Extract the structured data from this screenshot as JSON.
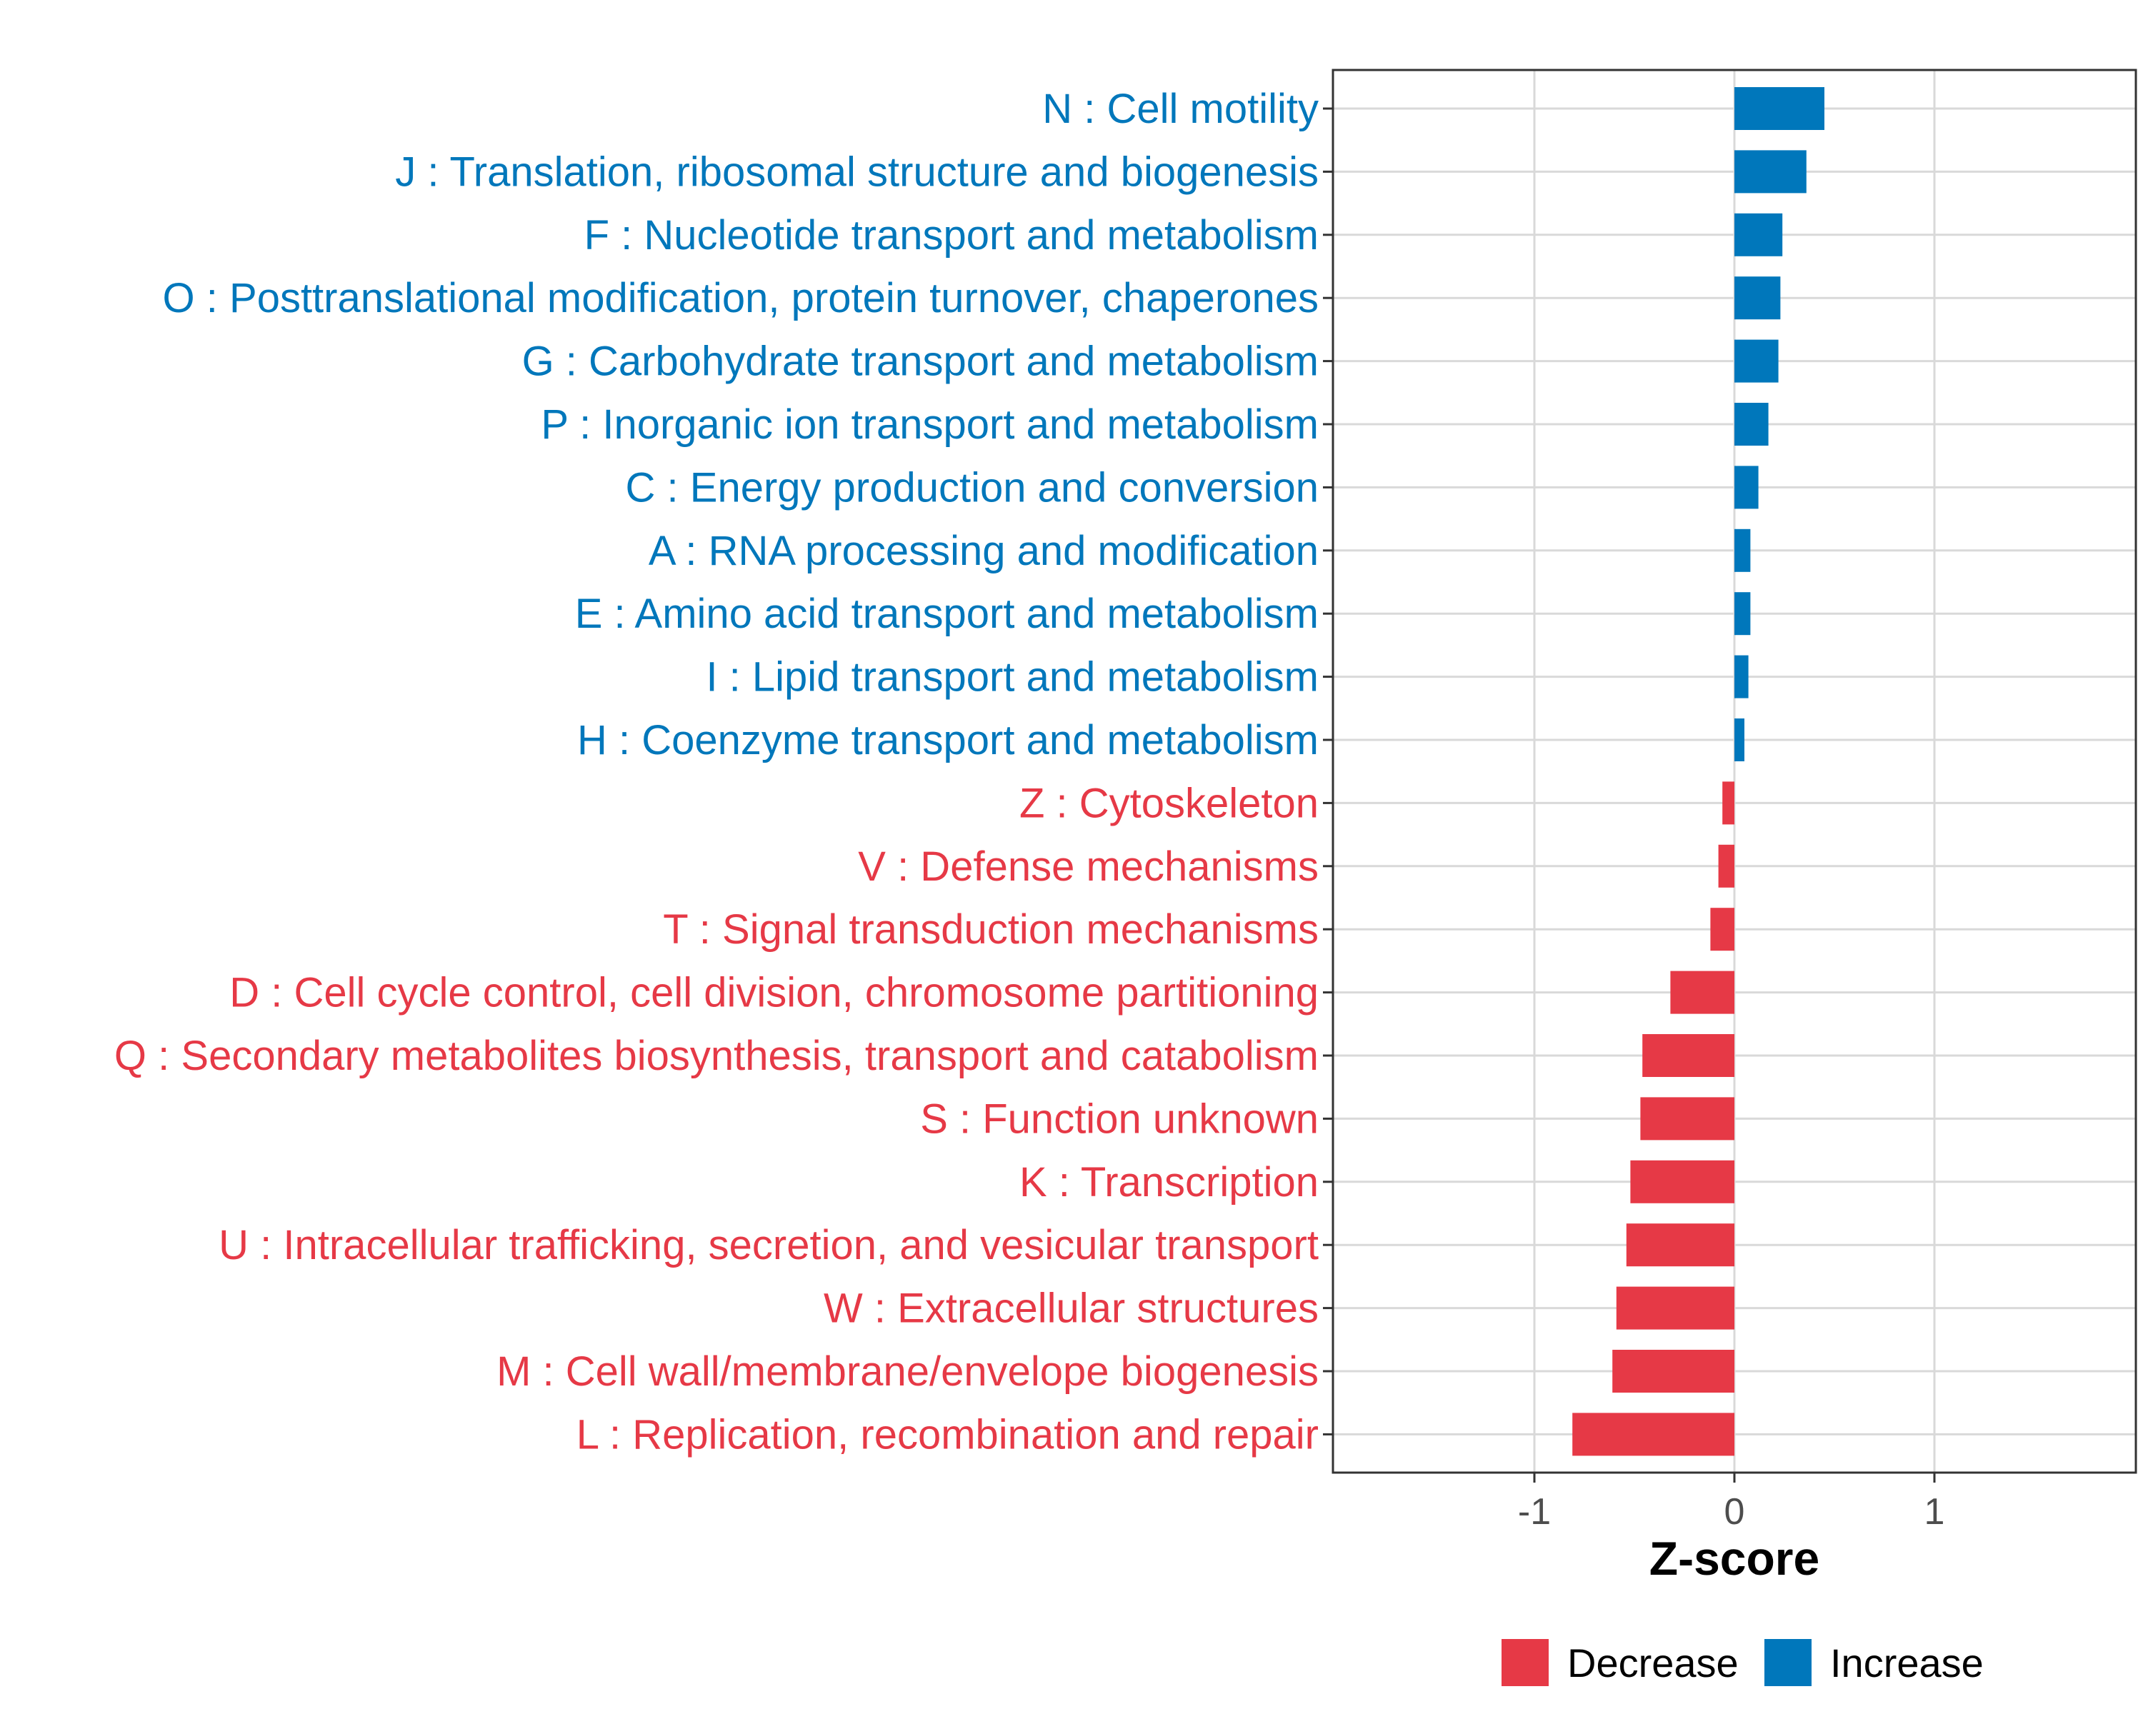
{
  "chart_data": {
    "type": "bar",
    "orientation": "horizontal",
    "xlabel": "Z-score",
    "xlim": [
      -2,
      2
    ],
    "xticks": [
      -1,
      0,
      1
    ],
    "xtick_labels": [
      "-1",
      "0",
      "1"
    ],
    "grid": true,
    "legend_position": "bottom",
    "colors": {
      "Increase": "#0077BB",
      "Decrease": "#E63946"
    },
    "legend": [
      {
        "name": "Decrease",
        "color": "#E63946"
      },
      {
        "name": "Increase",
        "color": "#0077BB"
      }
    ],
    "categories": [
      "N : Cell motility",
      "J : Translation, ribosomal structure and biogenesis",
      "F : Nucleotide transport and metabolism",
      "O : Posttranslational modification, protein turnover, chaperones",
      "G : Carbohydrate transport and metabolism",
      "P : Inorganic ion transport and metabolism",
      "C : Energy production and conversion",
      "A : RNA processing and modification",
      "E : Amino acid transport and metabolism",
      "I : Lipid transport and metabolism",
      "H : Coenzyme transport and metabolism",
      "Z : Cytoskeleton",
      "V : Defense mechanisms",
      "T : Signal transduction mechanisms",
      "D : Cell cycle control, cell division, chromosome partitioning",
      "Q : Secondary metabolites biosynthesis, transport and catabolism",
      "S : Function unknown",
      "K : Transcription",
      "U : Intracellular trafficking, secretion, and vesicular transport",
      "W : Extracellular structures",
      "M : Cell wall/membrane/envelope biogenesis",
      "L : Replication, recombination and repair"
    ],
    "values": [
      0.45,
      0.36,
      0.24,
      0.23,
      0.22,
      0.17,
      0.12,
      0.08,
      0.08,
      0.07,
      0.05,
      -0.06,
      -0.08,
      -0.12,
      -0.32,
      -0.46,
      -0.47,
      -0.52,
      -0.54,
      -0.59,
      -0.61,
      -0.81
    ],
    "groups": [
      "Increase",
      "Increase",
      "Increase",
      "Increase",
      "Increase",
      "Increase",
      "Increase",
      "Increase",
      "Increase",
      "Increase",
      "Increase",
      "Decrease",
      "Decrease",
      "Decrease",
      "Decrease",
      "Decrease",
      "Decrease",
      "Decrease",
      "Decrease",
      "Decrease",
      "Decrease",
      "Decrease"
    ]
  }
}
